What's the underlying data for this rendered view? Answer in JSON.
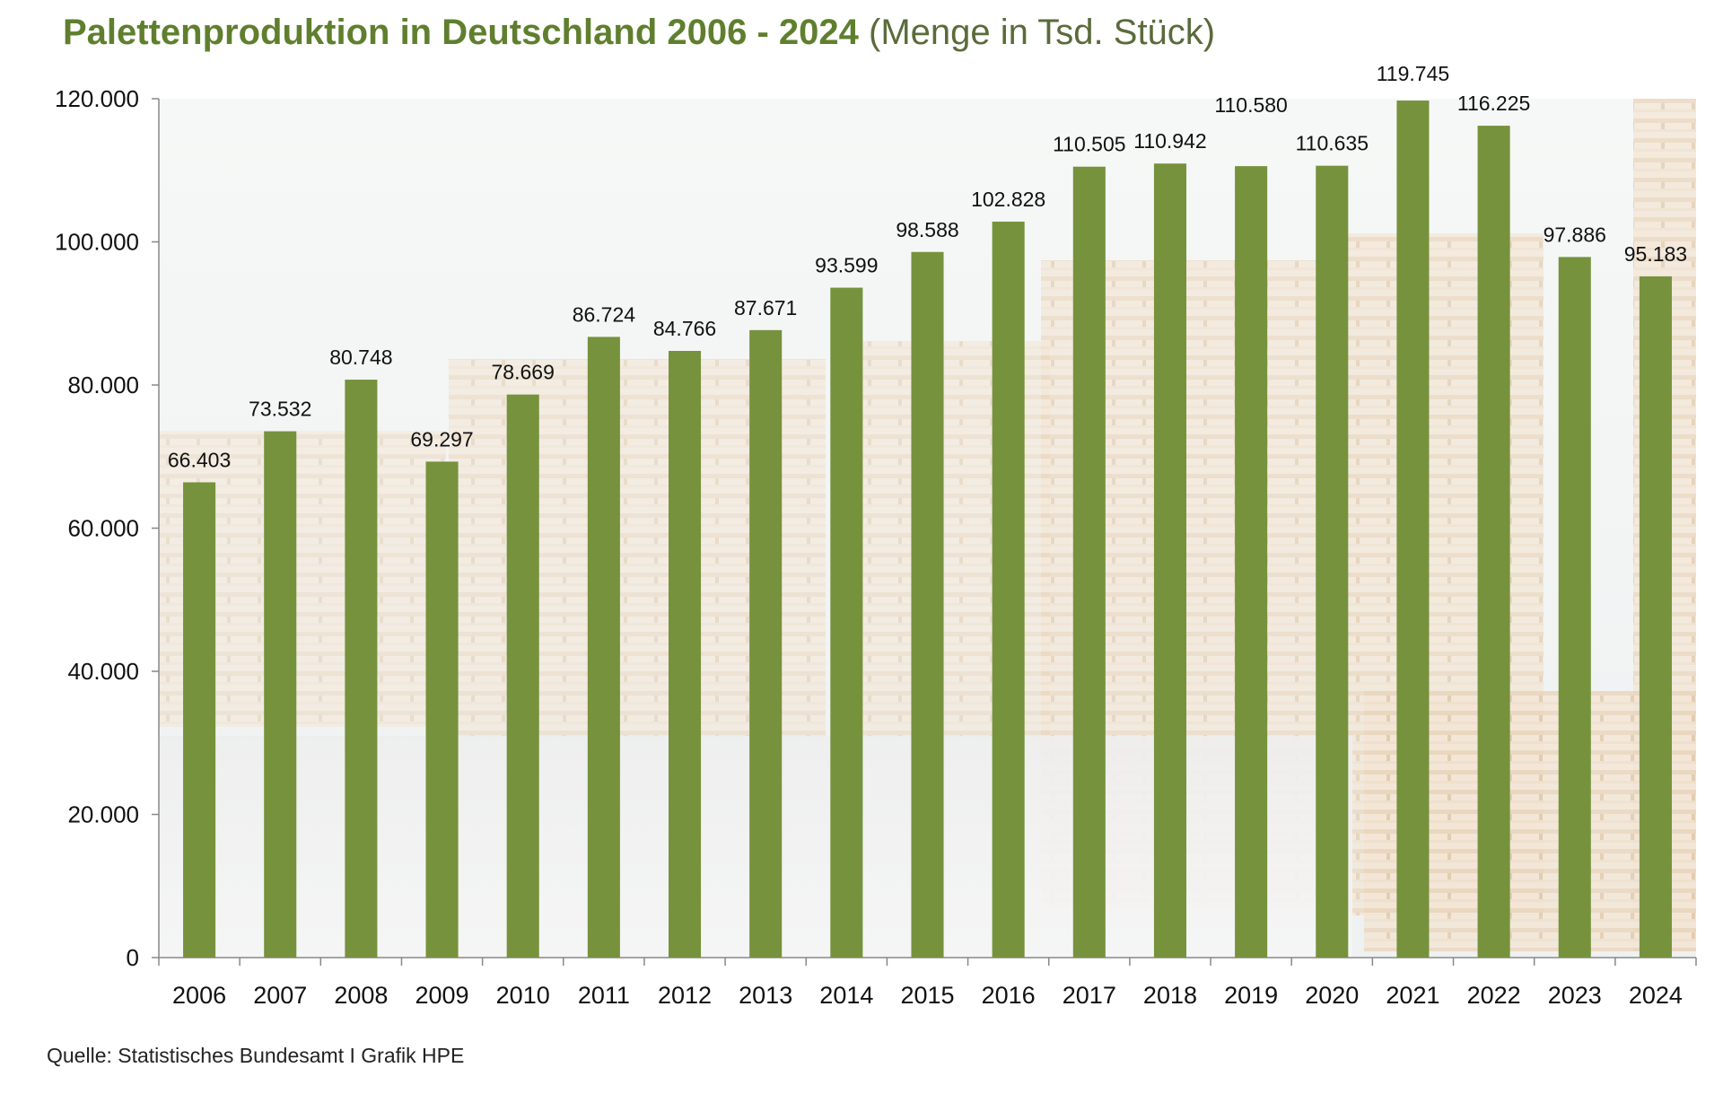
{
  "title": {
    "bold": "Palettenproduktion in Deutschland 2006 - 2024",
    "light": "(Menge in Tsd. Stück)"
  },
  "source": "Quelle: Statistisches Bundesamt I Grafik HPE",
  "colors": {
    "bar": "#76923c",
    "title": "#5f7f2e",
    "axis": "#888888"
  },
  "chart_data": {
    "type": "bar",
    "title": "Palettenproduktion in Deutschland 2006 - 2024 (Menge in Tsd. Stück)",
    "xlabel": "",
    "ylabel": "",
    "categories": [
      "2006",
      "2007",
      "2008",
      "2009",
      "2010",
      "2011",
      "2012",
      "2013",
      "2014",
      "2015",
      "2016",
      "2017",
      "2018",
      "2019",
      "2020",
      "2021",
      "2022",
      "2023",
      "2024"
    ],
    "values": [
      66403,
      73532,
      80748,
      69297,
      78669,
      86724,
      84766,
      87671,
      93599,
      98588,
      102828,
      110505,
      110942,
      110580,
      110635,
      119745,
      116225,
      97886,
      95183
    ],
    "value_labels": [
      "66.403",
      "73.532",
      "80.748",
      "69.297",
      "78.669",
      "86.724",
      "84.766",
      "87.671",
      "93.599",
      "98.588",
      "102.828",
      "110.505",
      "110.942",
      "110.580",
      "110.635",
      "119.745",
      "116.225",
      "97.886",
      "95.183"
    ],
    "ylim": [
      0,
      120000
    ],
    "yticks": [
      0,
      20000,
      40000,
      60000,
      80000,
      100000,
      120000
    ],
    "ytick_labels": [
      "0",
      "20.000",
      "40.000",
      "60.000",
      "80.000",
      "100.000",
      "120.000"
    ],
    "grid": false,
    "legend": "none"
  }
}
